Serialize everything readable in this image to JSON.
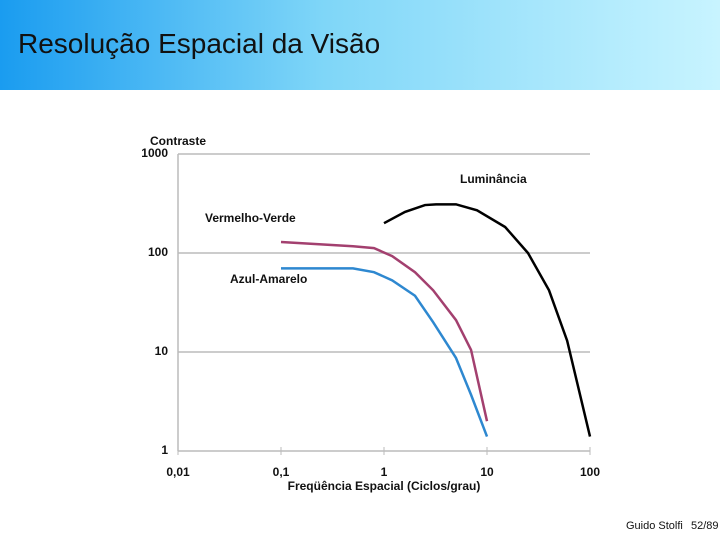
{
  "header": {
    "title": "Resolução Espacial da Visão"
  },
  "chart_data": {
    "type": "line",
    "y_label": "Contraste",
    "x_label": "Freqüência Espacial (Ciclos/grau)",
    "xlog": true,
    "ylog": true,
    "grid": true,
    "xlim": [
      0.01,
      100
    ],
    "ylim": [
      1,
      1000
    ],
    "xticks": [
      {
        "value": 0.01,
        "label": "0,01"
      },
      {
        "value": 0.1,
        "label": "0,1"
      },
      1,
      10,
      100
    ],
    "yticks": [
      1,
      10,
      100,
      1000
    ],
    "series": [
      {
        "name": "Luminância",
        "color": "#000000",
        "x": [
          1,
          1.6,
          2.5,
          3.2,
          5,
          8,
          15,
          25,
          40,
          60,
          100
        ],
        "values": [
          200,
          260,
          305,
          310,
          310,
          270,
          183,
          100,
          42,
          13,
          1.4
        ]
      },
      {
        "name": "Vermelho-Verde",
        "color": "#a3406f",
        "x": [
          0.1,
          0.5,
          0.8,
          1.2,
          2,
          3,
          5,
          7,
          10
        ],
        "values": [
          129,
          117,
          112,
          93,
          64,
          42,
          21,
          10.5,
          2
        ]
      },
      {
        "name": "Azul-Amarelo",
        "color": "#2e88d0",
        "x": [
          0.1,
          0.5,
          0.8,
          1.2,
          2,
          3,
          5,
          7,
          10
        ],
        "values": [
          70,
          70,
          64,
          53,
          37,
          20,
          8.7,
          3.7,
          1.4
        ]
      }
    ]
  },
  "footer": {
    "author": "Guido Stolfi",
    "page": "52/89"
  }
}
